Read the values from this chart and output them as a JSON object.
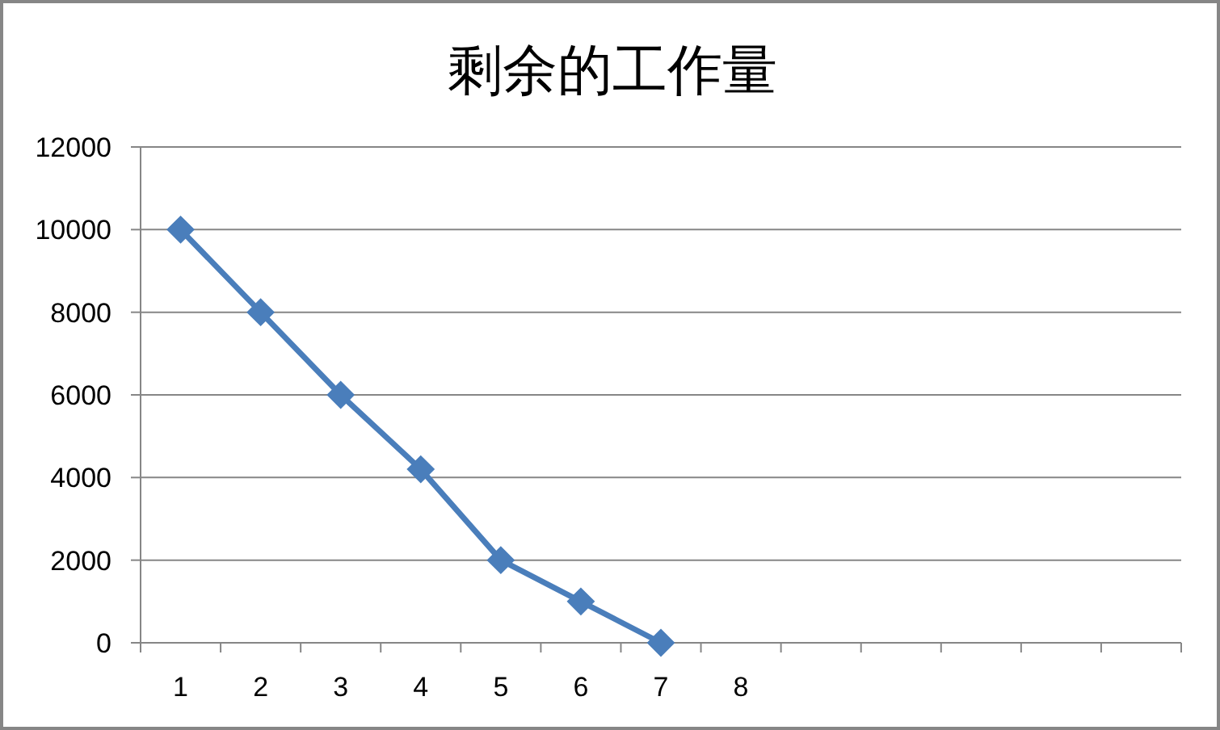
{
  "chart_data": {
    "type": "line",
    "title": "剩余的工作量",
    "categories": [
      "1",
      "2",
      "3",
      "4",
      "5",
      "6",
      "7",
      "8",
      null,
      null,
      null,
      null,
      null
    ],
    "values": [
      10000,
      8000,
      6000,
      4200,
      2000,
      1000,
      0,
      null,
      null,
      null,
      null,
      null,
      null
    ],
    "color": "#4a7ebb",
    "ylim": [
      0,
      12000
    ],
    "yticks": [
      0,
      2000,
      4000,
      6000,
      8000,
      10000,
      12000
    ],
    "grid": "y",
    "marker": "diamond",
    "line_style": "solid"
  }
}
